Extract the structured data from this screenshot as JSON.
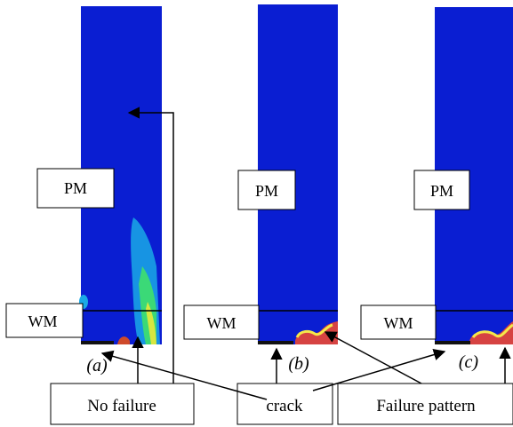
{
  "panels": [
    {
      "id": "a",
      "caption": "(a)",
      "region_top": "PM",
      "region_bottom": "WM",
      "failure": "none"
    },
    {
      "id": "b",
      "caption": "(b)",
      "region_top": "PM",
      "region_bottom": "WM",
      "failure": "crack"
    },
    {
      "id": "c",
      "caption": "(c)",
      "region_top": "PM",
      "region_bottom": "WM",
      "failure": "crack"
    }
  ],
  "labels": {
    "no_failure": "No failure",
    "crack": "crack",
    "failure_pattern": "Failure pattern"
  },
  "colors": {
    "field": "#0a1ed2",
    "frame": "#000000",
    "label_border": "#000000"
  }
}
